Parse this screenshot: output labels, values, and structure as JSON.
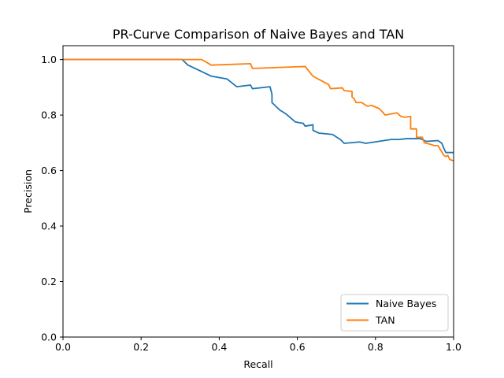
{
  "chart_data": {
    "type": "line",
    "title": "PR-Curve Comparison of Naive Bayes and TAN",
    "xlabel": "Recall",
    "ylabel": "Precision",
    "xlim": [
      0,
      1
    ],
    "ylim": [
      0,
      1.05
    ],
    "xticks": [
      0.0,
      0.2,
      0.4,
      0.6,
      0.8,
      1.0
    ],
    "yticks": [
      0.0,
      0.2,
      0.4,
      0.6,
      0.8,
      1.0
    ],
    "xtick_labels": [
      "0.0",
      "0.2",
      "0.4",
      "0.6",
      "0.8",
      "1.0"
    ],
    "ytick_labels": [
      "0.0",
      "0.2",
      "0.4",
      "0.6",
      "0.8",
      "1.0"
    ],
    "grid": false,
    "legend_position": "lower-right",
    "series": [
      {
        "name": "Naive Bayes",
        "color": "#1f77b4",
        "x": [
          0.0,
          0.305,
          0.32,
          0.38,
          0.42,
          0.445,
          0.48,
          0.485,
          0.53,
          0.535,
          0.535,
          0.555,
          0.57,
          0.595,
          0.615,
          0.62,
          0.64,
          0.64,
          0.655,
          0.69,
          0.71,
          0.72,
          0.76,
          0.775,
          0.84,
          0.86,
          0.88,
          0.915,
          0.93,
          0.96,
          0.97,
          0.975,
          0.98,
          1.0
        ],
        "y": [
          1.0,
          1.0,
          0.98,
          0.94,
          0.93,
          0.902,
          0.908,
          0.895,
          0.902,
          0.875,
          0.845,
          0.818,
          0.805,
          0.775,
          0.77,
          0.76,
          0.765,
          0.745,
          0.735,
          0.73,
          0.712,
          0.698,
          0.703,
          0.698,
          0.712,
          0.712,
          0.715,
          0.715,
          0.705,
          0.708,
          0.698,
          0.68,
          0.665,
          0.665
        ]
      },
      {
        "name": "TAN",
        "color": "#ff7f0e",
        "x": [
          0.0,
          0.355,
          0.38,
          0.48,
          0.485,
          0.62,
          0.64,
          0.66,
          0.68,
          0.685,
          0.715,
          0.72,
          0.74,
          0.74,
          0.745,
          0.75,
          0.765,
          0.775,
          0.78,
          0.79,
          0.81,
          0.825,
          0.855,
          0.865,
          0.875,
          0.89,
          0.89,
          0.905,
          0.905,
          0.92,
          0.925,
          0.93,
          0.94,
          0.95,
          0.96,
          0.975,
          0.98,
          0.985,
          0.99,
          1.0
        ],
        "y": [
          1.0,
          1.0,
          0.98,
          0.985,
          0.968,
          0.975,
          0.94,
          0.925,
          0.91,
          0.895,
          0.898,
          0.888,
          0.885,
          0.865,
          0.86,
          0.845,
          0.845,
          0.835,
          0.832,
          0.835,
          0.823,
          0.8,
          0.808,
          0.795,
          0.792,
          0.795,
          0.75,
          0.75,
          0.72,
          0.72,
          0.7,
          0.698,
          0.695,
          0.69,
          0.69,
          0.655,
          0.65,
          0.655,
          0.64,
          0.635
        ]
      }
    ]
  }
}
